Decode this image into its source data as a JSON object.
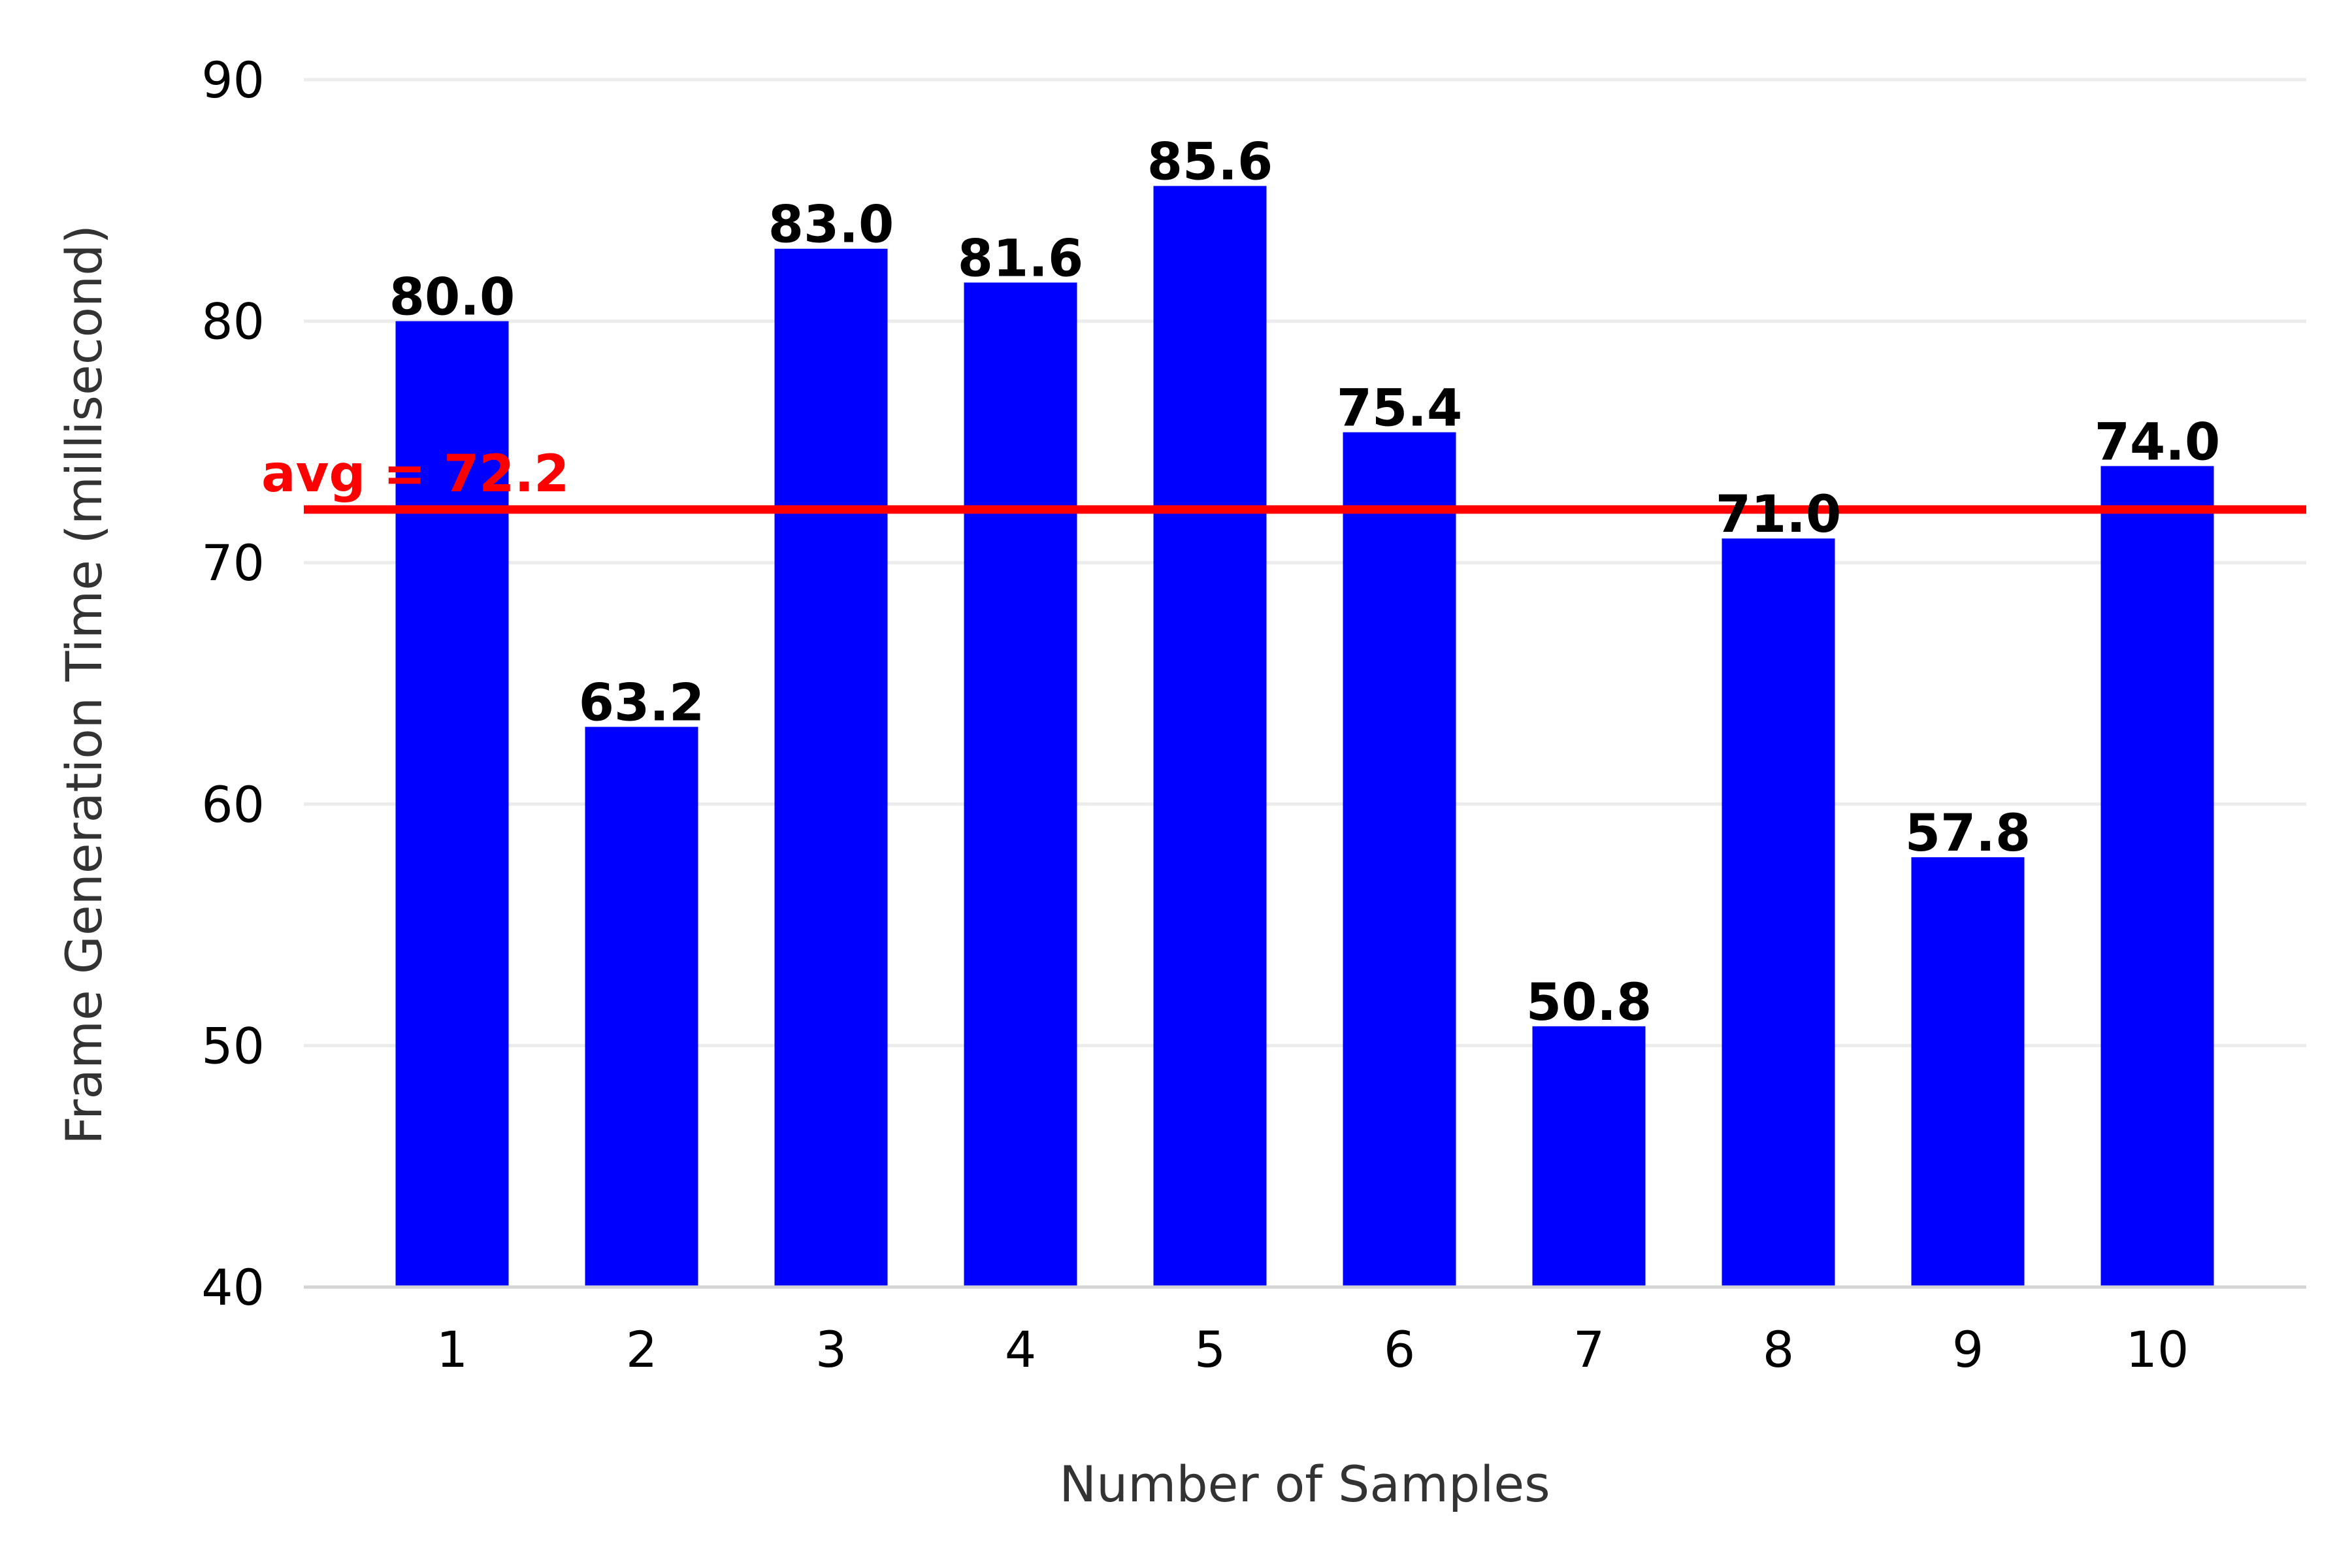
{
  "chart_data": {
    "type": "bar",
    "categories": [
      "1",
      "2",
      "3",
      "4",
      "5",
      "6",
      "7",
      "8",
      "9",
      "10"
    ],
    "values": [
      80.0,
      63.2,
      83.0,
      81.6,
      85.6,
      75.4,
      50.8,
      71.0,
      57.8,
      74.0
    ],
    "value_labels": [
      "80.0",
      "63.2",
      "83.0",
      "81.6",
      "85.6",
      "75.4",
      "50.8",
      "71.0",
      "57.8",
      "74.0"
    ],
    "title": "",
    "xlabel": "Number of Samples",
    "ylabel": "Frame Generation Time (millisecond)",
    "ylim": [
      40,
      90
    ],
    "yticks": [
      40,
      50,
      60,
      70,
      80,
      90
    ],
    "grid": true,
    "bar_color": "#0000ff",
    "average": {
      "value": 72.2,
      "label": "avg = 72.2",
      "color": "#ff0000"
    }
  }
}
